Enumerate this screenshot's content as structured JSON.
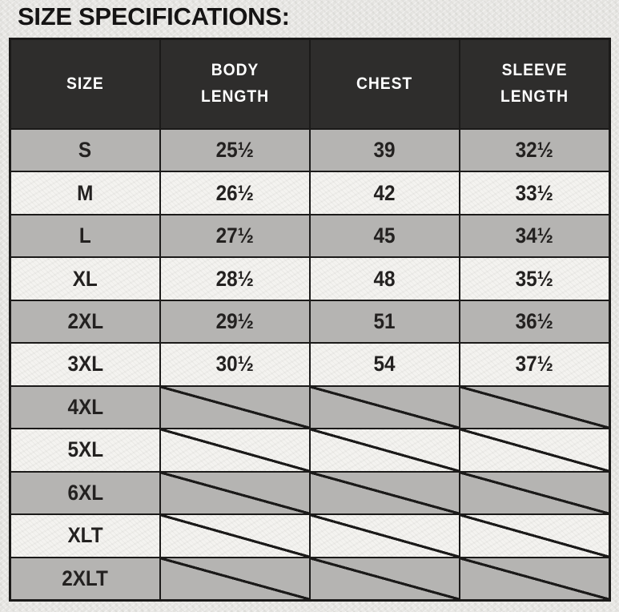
{
  "page": {
    "title": "SIZE SPECIFICATIONS:"
  },
  "table": {
    "columns": [
      "SIZE",
      "BODY LENGTH",
      "CHEST",
      "SLEEVE LENGTH"
    ],
    "rows": [
      {
        "size": "S",
        "values": [
          "25½",
          "39",
          "32½"
        ],
        "slashed": false
      },
      {
        "size": "M",
        "values": [
          "26½",
          "42",
          "33½"
        ],
        "slashed": false
      },
      {
        "size": "L",
        "values": [
          "27½",
          "45",
          "34½"
        ],
        "slashed": false
      },
      {
        "size": "XL",
        "values": [
          "28½",
          "48",
          "35½"
        ],
        "slashed": false
      },
      {
        "size": "2XL",
        "values": [
          "29½",
          "51",
          "36½"
        ],
        "slashed": false
      },
      {
        "size": "3XL",
        "values": [
          "30½",
          "54",
          "37½"
        ],
        "slashed": false
      },
      {
        "size": "4XL",
        "values": [
          "",
          "",
          ""
        ],
        "slashed": true
      },
      {
        "size": "5XL",
        "values": [
          "",
          "",
          ""
        ],
        "slashed": true
      },
      {
        "size": "6XL",
        "values": [
          "",
          "",
          ""
        ],
        "slashed": true
      },
      {
        "size": "XLT",
        "values": [
          "",
          "",
          ""
        ],
        "slashed": true
      },
      {
        "size": "2XLT",
        "values": [
          "",
          "",
          ""
        ],
        "slashed": true
      }
    ]
  },
  "chart_data": {
    "type": "table",
    "title": "SIZE SPECIFICATIONS:",
    "columns": [
      "SIZE",
      "BODY LENGTH",
      "CHEST",
      "SLEEVE LENGTH"
    ],
    "rows": [
      [
        "S",
        "25½",
        "39",
        "32½"
      ],
      [
        "M",
        "26½",
        "42",
        "33½"
      ],
      [
        "L",
        "27½",
        "45",
        "34½"
      ],
      [
        "XL",
        "28½",
        "48",
        "35½"
      ],
      [
        "2XL",
        "29½",
        "51",
        "36½"
      ],
      [
        "3XL",
        "30½",
        "54",
        "37½"
      ],
      [
        "4XL",
        null,
        null,
        null
      ],
      [
        "5XL",
        null,
        null,
        null
      ],
      [
        "6XL",
        null,
        null,
        null
      ],
      [
        "XLT",
        null,
        null,
        null
      ],
      [
        "2XLT",
        null,
        null,
        null
      ]
    ],
    "notes": "null cells are shown struck through with a corner-to-corner diagonal slash (size not available)"
  },
  "colors": {
    "page_bg": "#E9E8E5",
    "header_bg": "#2E2D2C",
    "header_text": "#FFFFFF",
    "row_gray": "#B5B4B2",
    "row_light": "#F4F3F0",
    "border": "#1B1A19",
    "text": "#232120"
  }
}
